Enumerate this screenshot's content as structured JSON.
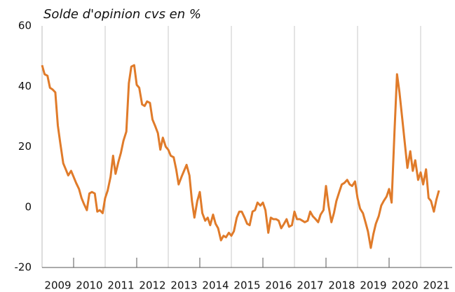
{
  "chart_data": {
    "type": "line",
    "title": "Solde d'opinion cvs en %",
    "xlim": [
      2009,
      2022
    ],
    "xticks": [
      {
        "value": 2009.5,
        "label": "2009"
      },
      {
        "value": 2010.5,
        "label": "2010"
      },
      {
        "value": 2011.5,
        "label": "2011"
      },
      {
        "value": 2012.5,
        "label": "2012"
      },
      {
        "value": 2013.5,
        "label": "2013"
      },
      {
        "value": 2014.5,
        "label": "2014"
      },
      {
        "value": 2015.5,
        "label": "2015"
      },
      {
        "value": 2016.5,
        "label": "2016"
      },
      {
        "value": 2017.5,
        "label": "2017"
      },
      {
        "value": 2018.5,
        "label": "2018"
      },
      {
        "value": 2019.5,
        "label": "2019"
      },
      {
        "value": 2020.5,
        "label": "2020"
      },
      {
        "value": 2021.5,
        "label": "2021"
      }
    ],
    "xgrid": [
      2011,
      2013,
      2015,
      2017,
      2019,
      2021
    ],
    "xtick_marks": [
      2010,
      2012,
      2014,
      2016,
      2018,
      2020
    ],
    "ylim": [
      -20,
      60
    ],
    "yticks": [
      -20,
      0,
      20,
      40,
      60
    ],
    "series": [
      {
        "color": "#e07b2a",
        "x": [
          2009.0,
          2009.08,
          2009.17,
          2009.25,
          2009.33,
          2009.42,
          2009.5,
          2009.58,
          2009.67,
          2009.75,
          2009.83,
          2009.92,
          2010.0,
          2010.08,
          2010.17,
          2010.25,
          2010.33,
          2010.42,
          2010.5,
          2010.58,
          2010.67,
          2010.75,
          2010.83,
          2010.92,
          2011.0,
          2011.08,
          2011.17,
          2011.25,
          2011.33,
          2011.42,
          2011.5,
          2011.58,
          2011.67,
          2011.75,
          2011.83,
          2011.92,
          2012.0,
          2012.08,
          2012.17,
          2012.25,
          2012.33,
          2012.42,
          2012.5,
          2012.58,
          2012.67,
          2012.75,
          2012.83,
          2012.92,
          2013.0,
          2013.08,
          2013.17,
          2013.25,
          2013.33,
          2013.42,
          2013.5,
          2013.58,
          2013.67,
          2013.75,
          2013.83,
          2013.92,
          2014.0,
          2014.08,
          2014.17,
          2014.25,
          2014.33,
          2014.42,
          2014.5,
          2014.58,
          2014.67,
          2014.75,
          2014.83,
          2014.92,
          2015.0,
          2015.08,
          2015.17,
          2015.25,
          2015.33,
          2015.42,
          2015.5,
          2015.58,
          2015.67,
          2015.75,
          2015.83,
          2015.92,
          2016.0,
          2016.08,
          2016.17,
          2016.25,
          2016.33,
          2016.42,
          2016.5,
          2016.58,
          2016.67,
          2016.75,
          2016.83,
          2016.92,
          2017.0,
          2017.08,
          2017.17,
          2017.25,
          2017.33,
          2017.42,
          2017.5,
          2017.58,
          2017.67,
          2017.75,
          2017.83,
          2017.92,
          2018.0,
          2018.08,
          2018.17,
          2018.25,
          2018.33,
          2018.42,
          2018.5,
          2018.58,
          2018.67,
          2018.75,
          2018.83,
          2018.92,
          2019.0,
          2019.08,
          2019.17,
          2019.25,
          2019.33,
          2019.42,
          2019.5,
          2019.58,
          2019.67,
          2019.75,
          2019.83,
          2019.92,
          2020.0,
          2020.08,
          2020.17,
          2020.25,
          2020.33,
          2020.42,
          2020.5,
          2020.58,
          2020.67,
          2020.75,
          2020.83,
          2020.92,
          2021.0,
          2021.08,
          2021.17,
          2021.25,
          2021.33,
          2021.42,
          2021.5,
          2021.58
        ],
        "values": [
          47,
          44,
          43.5,
          39.5,
          39,
          38,
          27,
          21,
          14.5,
          12.5,
          10.5,
          12,
          10,
          8,
          6,
          3,
          1,
          -1,
          4.5,
          5,
          4.5,
          -1.5,
          -1,
          -2,
          3,
          5.5,
          10,
          17,
          11,
          15,
          18,
          22,
          25,
          41,
          46.5,
          47,
          40.5,
          39.5,
          34,
          33.5,
          35,
          34.5,
          29,
          27,
          24.5,
          19,
          23,
          20,
          19,
          17,
          16.5,
          12.5,
          7.5,
          10,
          12,
          14,
          10.5,
          2,
          -3.5,
          2,
          5,
          -2,
          -4.5,
          -3.5,
          -6,
          -2.5,
          -5.5,
          -7,
          -11,
          -9.5,
          -10,
          -8.5,
          -9.5,
          -8,
          -3.5,
          -1.5,
          -1.5,
          -3.5,
          -5.5,
          -6,
          -1.5,
          -1,
          1.5,
          0.5,
          1.5,
          -1,
          -8.5,
          -3.5,
          -4,
          -4,
          -4.5,
          -7,
          -5.5,
          -4,
          -6.5,
          -6,
          -1.5,
          -4,
          -4,
          -4.5,
          -5,
          -4.5,
          -1.5,
          -3,
          -4,
          -5,
          -2.5,
          -1,
          7,
          0.5,
          -5,
          -2,
          2,
          5,
          7.5,
          8,
          9,
          7.5,
          7,
          8.5,
          3,
          -0.5,
          -2,
          -5,
          -8,
          -13.5,
          -9,
          -5.5,
          -3,
          0.5,
          2,
          3.5,
          6,
          1.5,
          25,
          44,
          38,
          29,
          21,
          13,
          18.5,
          12,
          15.5,
          9,
          11.5,
          7.5,
          12.5,
          3,
          2,
          -1.5,
          2.5,
          5.5
        ]
      }
    ]
  }
}
